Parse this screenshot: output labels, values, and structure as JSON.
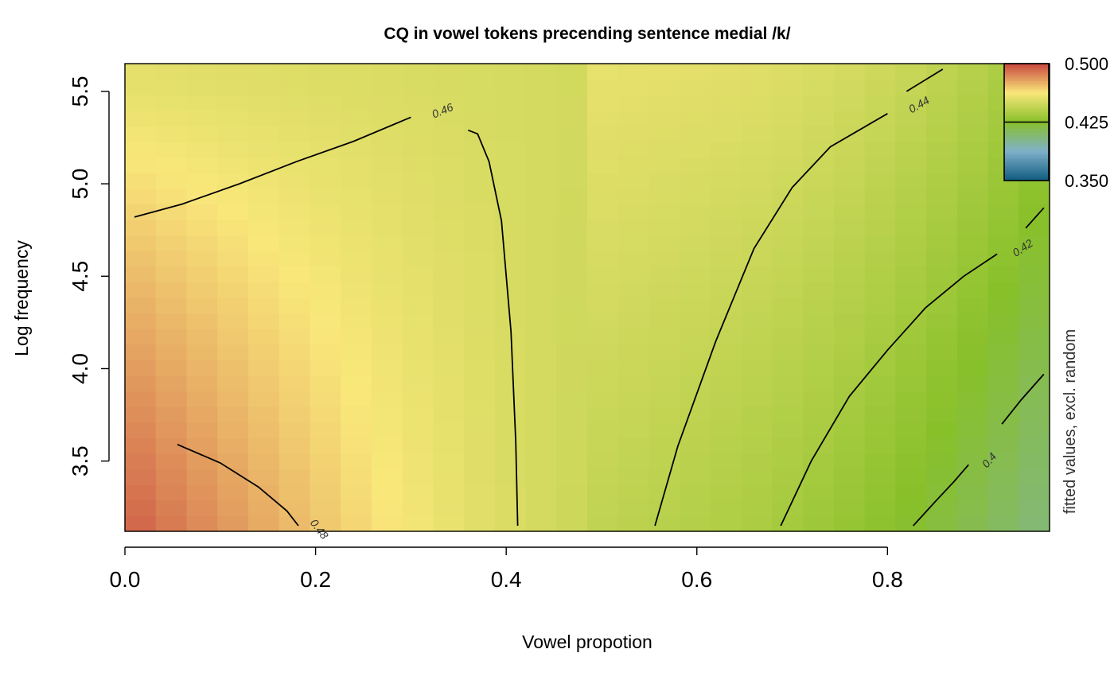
{
  "chart_data": {
    "type": "heatmap",
    "title": "CQ in vowel tokens precending sentence medial /k/",
    "xlabel": "Vowel propotion",
    "ylabel": "Log frequency",
    "xlim": [
      0.0,
      0.97
    ],
    "ylim": [
      3.12,
      5.65
    ],
    "x_ticks": [
      {
        "value": 0.0,
        "label": "0.0"
      },
      {
        "value": 0.2,
        "label": "0.2"
      },
      {
        "value": 0.4,
        "label": "0.4"
      },
      {
        "value": 0.6,
        "label": "0.6"
      },
      {
        "value": 0.8,
        "label": "0.8"
      }
    ],
    "y_ticks": [
      {
        "value": 3.5,
        "label": "3.5"
      },
      {
        "value": 4.0,
        "label": "4.0"
      },
      {
        "value": 4.5,
        "label": "4.5"
      },
      {
        "value": 5.0,
        "label": "5.0"
      },
      {
        "value": 5.5,
        "label": "5.5"
      }
    ],
    "grid_cols": 30,
    "grid_rows": 30,
    "colorbar": {
      "title": "fitted values, excl. random",
      "range": [
        0.35,
        0.5
      ],
      "ticks": [
        {
          "value": 0.5,
          "label": "0.500"
        },
        {
          "value": 0.425,
          "label": "0.425"
        },
        {
          "value": 0.35,
          "label": "0.350"
        }
      ],
      "marker": 0.425,
      "colors": [
        "#0f5c80",
        "#7fb0c9",
        "#88c02a",
        "#f9e77a",
        "#c8463f"
      ]
    },
    "contours": [
      {
        "level": 0.48,
        "label": "0.48",
        "points": [
          [
            0.055,
            3.59
          ],
          [
            0.1,
            3.49
          ],
          [
            0.14,
            3.36
          ],
          [
            0.17,
            3.23
          ],
          [
            0.182,
            3.15
          ]
        ]
      },
      {
        "level": 0.46,
        "label": "0.46",
        "points": [
          [
            0.01,
            4.82
          ],
          [
            0.06,
            4.89
          ],
          [
            0.12,
            5.0
          ],
          [
            0.18,
            5.12
          ],
          [
            0.24,
            5.23
          ],
          [
            0.3,
            5.36
          ]
        ]
      },
      {
        "level": 0.46,
        "label": "",
        "points": [
          [
            0.36,
            5.29
          ],
          [
            0.37,
            5.27
          ],
          [
            0.382,
            5.12
          ],
          [
            0.395,
            4.8
          ],
          [
            0.405,
            4.2
          ],
          [
            0.41,
            3.6
          ],
          [
            0.412,
            3.15
          ]
        ]
      },
      {
        "level": 0.44,
        "label": "0.44",
        "points": [
          [
            0.556,
            3.15
          ],
          [
            0.58,
            3.58
          ],
          [
            0.62,
            4.15
          ],
          [
            0.66,
            4.65
          ],
          [
            0.7,
            4.98
          ],
          [
            0.74,
            5.2
          ],
          [
            0.8,
            5.38
          ]
        ]
      },
      {
        "level": 0.44,
        "label": "",
        "points": [
          [
            0.82,
            5.5
          ],
          [
            0.858,
            5.62
          ]
        ]
      },
      {
        "level": 0.42,
        "label": "0.42",
        "points": [
          [
            0.688,
            3.15
          ],
          [
            0.72,
            3.5
          ],
          [
            0.76,
            3.85
          ],
          [
            0.8,
            4.1
          ],
          [
            0.84,
            4.33
          ],
          [
            0.88,
            4.5
          ],
          [
            0.915,
            4.62
          ]
        ]
      },
      {
        "level": 0.42,
        "label": "",
        "points": [
          [
            0.945,
            4.76
          ],
          [
            0.964,
            4.87
          ]
        ]
      },
      {
        "level": 0.4,
        "label": "0.4",
        "points": [
          [
            0.827,
            3.15
          ],
          [
            0.85,
            3.28
          ],
          [
            0.87,
            3.39
          ],
          [
            0.885,
            3.48
          ]
        ]
      },
      {
        "level": 0.4,
        "label": "",
        "points": [
          [
            0.92,
            3.7
          ],
          [
            0.94,
            3.83
          ],
          [
            0.964,
            3.97
          ]
        ]
      }
    ]
  }
}
